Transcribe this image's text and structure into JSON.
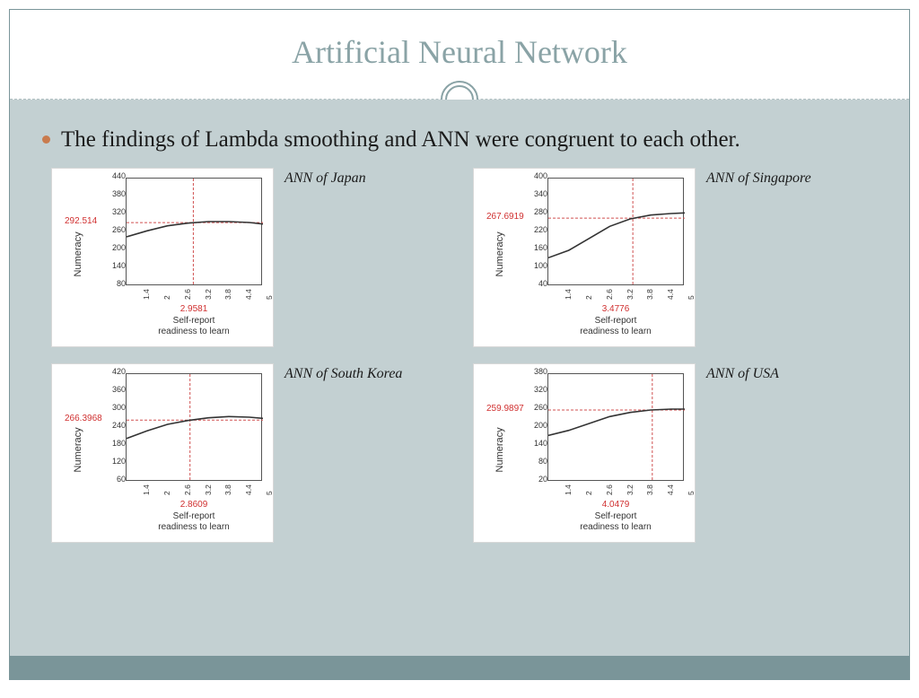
{
  "title": "Artificial Neural Network",
  "bullet_text": "The findings of Lambda smoothing and ANN were congruent to each other.",
  "colors": {
    "title_color": "#8aa3a6",
    "body_bg": "#c3d0d2",
    "footer_bg": "#7a9599",
    "border": "#7a9599",
    "bullet_dot": "#c97b4e",
    "marker_color": "#d03030",
    "axis_color": "#555555",
    "line_color": "#333333",
    "crosshair_color": "#d05050"
  },
  "charts": [
    {
      "caption": "ANN of Japan",
      "ylabel": "Numeracy",
      "xlabel": "Self-report\nreadiness to learn",
      "y_marker": "292.514",
      "x_marker": "2.9581",
      "ylim": [
        80,
        440
      ],
      "yticks": [
        80,
        140,
        200,
        260,
        320,
        380,
        440
      ],
      "xlim": [
        1.0,
        5.0
      ],
      "xticks": [
        1.4,
        2,
        2.6,
        3.2,
        3.8,
        4.4,
        5
      ],
      "crosshair_x": 2.9581,
      "crosshair_y": 292.514,
      "line_points": [
        [
          1.0,
          245
        ],
        [
          1.6,
          265
        ],
        [
          2.2,
          282
        ],
        [
          2.8,
          291
        ],
        [
          3.4,
          296
        ],
        [
          4.0,
          296
        ],
        [
          4.6,
          293
        ],
        [
          5.0,
          288
        ]
      ]
    },
    {
      "caption": "ANN of Singapore",
      "ylabel": "Numeracy",
      "xlabel": "Self-report\nreadiness to learn",
      "y_marker": "267.6919",
      "x_marker": "3.4776",
      "ylim": [
        40,
        400
      ],
      "yticks": [
        40,
        100,
        160,
        220,
        280,
        340,
        400
      ],
      "xlim": [
        1.0,
        5.0
      ],
      "xticks": [
        1.4,
        2,
        2.6,
        3.2,
        3.8,
        4.4,
        5
      ],
      "crosshair_x": 3.4776,
      "crosshair_y": 267.69,
      "line_points": [
        [
          1.0,
          135
        ],
        [
          1.6,
          160
        ],
        [
          2.2,
          200
        ],
        [
          2.8,
          240
        ],
        [
          3.4,
          265
        ],
        [
          4.0,
          278
        ],
        [
          4.6,
          283
        ],
        [
          5.0,
          285
        ]
      ]
    },
    {
      "caption": "ANN of South Korea",
      "ylabel": "Numeracy",
      "xlabel": "Self-report\nreadiness to learn",
      "y_marker": "266.3968",
      "x_marker": "2.8609",
      "ylim": [
        60,
        420
      ],
      "yticks": [
        60,
        120,
        180,
        240,
        300,
        360,
        420
      ],
      "xlim": [
        1.0,
        5.0
      ],
      "xticks": [
        1.4,
        2,
        2.6,
        3.2,
        3.8,
        4.4,
        5
      ],
      "crosshair_x": 2.8609,
      "crosshair_y": 266.4,
      "line_points": [
        [
          1.0,
          205
        ],
        [
          1.6,
          230
        ],
        [
          2.2,
          252
        ],
        [
          2.8,
          265
        ],
        [
          3.4,
          274
        ],
        [
          4.0,
          278
        ],
        [
          4.6,
          276
        ],
        [
          5.0,
          272
        ]
      ]
    },
    {
      "caption": "ANN of USA",
      "ylabel": "Numeracy",
      "xlabel": "Self-report\nreadiness to learn",
      "y_marker": "259.9897",
      "x_marker": "4.0479",
      "ylim": [
        20,
        380
      ],
      "yticks": [
        20,
        80,
        140,
        200,
        260,
        320,
        380
      ],
      "xlim": [
        1.0,
        5.0
      ],
      "xticks": [
        1.4,
        2,
        2.6,
        3.2,
        3.8,
        4.4,
        5
      ],
      "crosshair_x": 4.0479,
      "crosshair_y": 259.99,
      "line_points": [
        [
          1.0,
          175
        ],
        [
          1.6,
          192
        ],
        [
          2.2,
          215
        ],
        [
          2.8,
          238
        ],
        [
          3.4,
          252
        ],
        [
          4.0,
          260
        ],
        [
          4.6,
          263
        ],
        [
          5.0,
          263
        ]
      ]
    }
  ]
}
